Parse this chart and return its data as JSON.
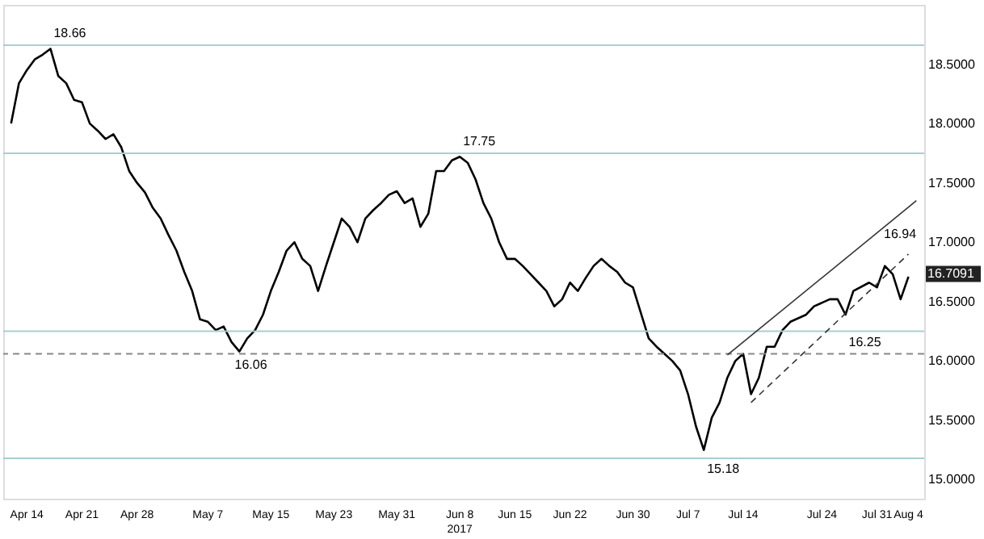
{
  "chart_data": {
    "type": "line",
    "x": [
      "2017-04-12",
      "2017-04-13",
      "2017-04-14",
      "2017-04-15",
      "2017-04-16",
      "2017-04-17",
      "2017-04-18",
      "2017-04-19",
      "2017-04-20",
      "2017-04-21",
      "2017-04-22",
      "2017-04-23",
      "2017-04-24",
      "2017-04-25",
      "2017-04-26",
      "2017-04-27",
      "2017-04-28",
      "2017-04-29",
      "2017-04-30",
      "2017-05-01",
      "2017-05-02",
      "2017-05-03",
      "2017-05-04",
      "2017-05-05",
      "2017-05-06",
      "2017-05-07",
      "2017-05-08",
      "2017-05-09",
      "2017-05-10",
      "2017-05-11",
      "2017-05-12",
      "2017-05-13",
      "2017-05-14",
      "2017-05-15",
      "2017-05-16",
      "2017-05-17",
      "2017-05-18",
      "2017-05-19",
      "2017-05-20",
      "2017-05-21",
      "2017-05-22",
      "2017-05-23",
      "2017-05-24",
      "2017-05-25",
      "2017-05-26",
      "2017-05-27",
      "2017-05-28",
      "2017-05-29",
      "2017-05-30",
      "2017-05-31",
      "2017-06-01",
      "2017-06-02",
      "2017-06-03",
      "2017-06-04",
      "2017-06-05",
      "2017-06-06",
      "2017-06-07",
      "2017-06-08",
      "2017-06-09",
      "2017-06-10",
      "2017-06-11",
      "2017-06-12",
      "2017-06-13",
      "2017-06-14",
      "2017-06-15",
      "2017-06-16",
      "2017-06-17",
      "2017-06-18",
      "2017-06-19",
      "2017-06-20",
      "2017-06-21",
      "2017-06-22",
      "2017-06-23",
      "2017-06-24",
      "2017-06-25",
      "2017-06-26",
      "2017-06-27",
      "2017-06-28",
      "2017-06-29",
      "2017-06-30",
      "2017-07-02",
      "2017-07-03",
      "2017-07-04",
      "2017-07-05",
      "2017-07-06",
      "2017-07-07",
      "2017-07-08",
      "2017-07-09",
      "2017-07-10",
      "2017-07-11",
      "2017-07-12",
      "2017-07-13",
      "2017-07-14",
      "2017-07-15",
      "2017-07-16",
      "2017-07-17",
      "2017-07-18",
      "2017-07-19",
      "2017-07-20",
      "2017-07-22",
      "2017-07-23",
      "2017-07-25",
      "2017-07-26",
      "2017-07-27",
      "2017-07-28",
      "2017-07-30",
      "2017-07-31",
      "2017-08-01",
      "2017-08-02",
      "2017-08-03",
      "2017-08-04"
    ],
    "series": [
      {
        "color": "#000000",
        "values": [
          18.0,
          18.34,
          18.45,
          18.54,
          18.58,
          18.63,
          18.4,
          18.34,
          18.2,
          18.18,
          18.0,
          17.94,
          17.87,
          17.91,
          17.8,
          17.6,
          17.5,
          17.42,
          17.29,
          17.2,
          17.06,
          16.93,
          16.75,
          16.59,
          16.35,
          16.33,
          16.26,
          16.29,
          16.16,
          16.08,
          16.19,
          16.26,
          16.39,
          16.59,
          16.75,
          16.93,
          17.0,
          16.86,
          16.8,
          16.59,
          16.8,
          17.0,
          17.2,
          17.13,
          17.0,
          17.2,
          17.27,
          17.33,
          17.4,
          17.43,
          17.33,
          17.37,
          17.13,
          17.24,
          17.6,
          17.6,
          17.69,
          17.72,
          17.67,
          17.53,
          17.33,
          17.2,
          17.0,
          16.86,
          16.86,
          16.8,
          16.73,
          16.66,
          16.59,
          16.46,
          16.52,
          16.66,
          16.59,
          16.7,
          16.8,
          16.86,
          16.8,
          16.75,
          16.66,
          16.62,
          16.19,
          16.12,
          16.06,
          16.0,
          15.92,
          15.72,
          15.45,
          15.25,
          15.52,
          15.65,
          15.86,
          16.0,
          16.06,
          15.72,
          15.86,
          16.12,
          16.12,
          16.26,
          16.33,
          16.39,
          16.46,
          16.52,
          16.52,
          16.39,
          16.59,
          16.66,
          16.62,
          16.8,
          16.73,
          16.52,
          16.71
        ]
      },
      {
        "color": "#333333",
        "x": [
          "2017-07-12",
          "2017-08-05"
        ],
        "values": [
          16.05,
          17.35
        ]
      },
      {
        "color": "#333333",
        "x": [
          "2017-07-15",
          "2017-08-04"
        ],
        "values": [
          15.65,
          16.9
        ],
        "line_style": "dashed"
      }
    ],
    "ylim": [
      14.84,
      19.0
    ],
    "yticks": [
      {
        "value": 15,
        "label": "15.0000"
      },
      {
        "value": 15.5,
        "label": "15.5000"
      },
      {
        "value": 16,
        "label": "16.0000"
      },
      {
        "value": 16.5,
        "label": "16.5000"
      },
      {
        "value": 17,
        "label": "17.0000"
      },
      {
        "value": 17.5,
        "label": "17.5000"
      },
      {
        "value": 18,
        "label": "18.0000"
      },
      {
        "value": 18.5,
        "label": "18.5000"
      }
    ],
    "xlim": [
      "2017-04-11",
      "2017-08-06"
    ],
    "xticks": [
      {
        "value": "2017-04-14",
        "label": "Apr 14"
      },
      {
        "value": "2017-04-21",
        "label": "Apr 21"
      },
      {
        "value": "2017-04-28",
        "label": "Apr 28"
      },
      {
        "value": "2017-05-07",
        "label": "May 7"
      },
      {
        "value": "2017-05-15",
        "label": "May 15"
      },
      {
        "value": "2017-05-23",
        "label": "May 23"
      },
      {
        "value": "2017-05-31",
        "label": "May 31"
      },
      {
        "value": "2017-06-08",
        "label": "Jun 8\n2017"
      },
      {
        "value": "2017-06-15",
        "label": "Jun 15"
      },
      {
        "value": "2017-06-22",
        "label": "Jun 22"
      },
      {
        "value": "2017-06-30",
        "label": "Jun 30"
      },
      {
        "value": "2017-07-07",
        "label": "Jul 7"
      },
      {
        "value": "2017-07-14",
        "label": "Jul 14"
      },
      {
        "value": "2017-07-24",
        "label": "Jul 24"
      },
      {
        "value": "2017-07-31",
        "label": "Jul 31"
      },
      {
        "value": "2017-08-04",
        "label": "Aug 4"
      }
    ],
    "ref_lines": [
      {
        "axis": "y",
        "value": 18.66,
        "color": "#a9cfcf"
      },
      {
        "axis": "y",
        "value": 17.75,
        "color": "#a9cfcf"
      },
      {
        "axis": "y",
        "value": 16.06,
        "color": "#888888",
        "line_style": "dashed"
      },
      {
        "axis": "y",
        "value": 16.25,
        "color": "#a9cfcf"
      },
      {
        "axis": "y",
        "value": 15.18,
        "color": "#a9cfcf"
      }
    ],
    "annotations": [
      {
        "text": "18.66",
        "x": "2017-04-17",
        "y": 18.66
      },
      {
        "text": "17.75",
        "x": "2017-06-08",
        "y": 17.75
      },
      {
        "text": "16.06",
        "x": "2017-05-10",
        "y": 16.06
      },
      {
        "text": "16.25",
        "x": "2017-07-27",
        "y": 16.25
      },
      {
        "text": "15.18",
        "x": "2017-07-09",
        "y": 15.18
      },
      "16.94",
      "16.7091"
    ],
    "grid": false
  }
}
